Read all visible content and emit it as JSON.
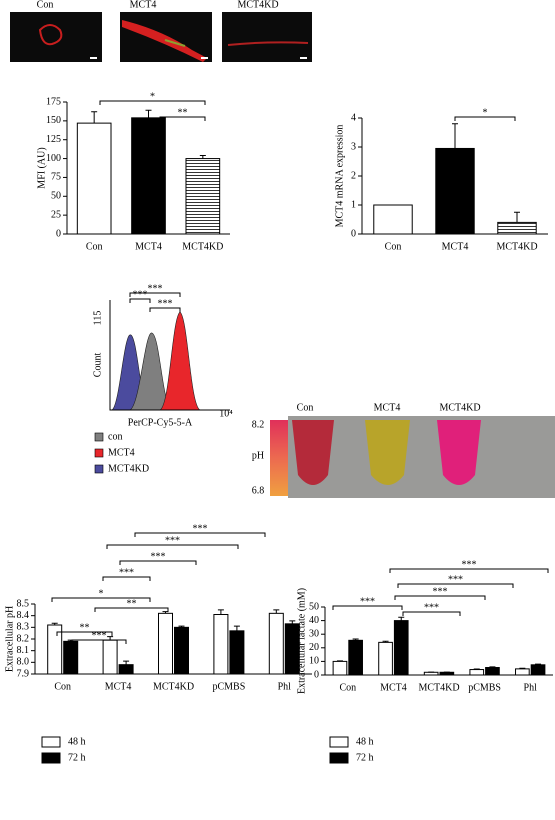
{
  "images": {
    "labels": [
      "Con",
      "MCT4",
      "MCT4KD"
    ]
  },
  "flow": {
    "ylabel": "Count",
    "ymax_label": "115",
    "xlabel": "PerCP-Cy5-5-A",
    "xmax_label": "10⁴",
    "legend": [
      {
        "name": "con",
        "color": "#7f7f7f"
      },
      {
        "name": "MCT4",
        "color": "#e8262b"
      },
      {
        "name": "MCT4KD",
        "color": "#4b4b9e"
      }
    ],
    "significance": [
      "***",
      "***",
      "***"
    ]
  },
  "tubes": {
    "labels": [
      "Con",
      "MCT4",
      "MCT4KD"
    ],
    "scale_top": "8.2",
    "scale_label": "pH",
    "scale_bottom": "6.8"
  },
  "chart_data": [
    {
      "type": "bar",
      "ylabel": "MFI (AU)",
      "categories": [
        "Con",
        "MCT4",
        "MCT4KD"
      ],
      "values": [
        147,
        154,
        100
      ],
      "errors": [
        15,
        10,
        4
      ],
      "colors": [
        "#ffffff",
        "#000000",
        "#ffffff"
      ],
      "hatched": [
        false,
        false,
        true
      ],
      "ylim": [
        0,
        175
      ],
      "yticks": [
        0,
        25,
        50,
        75,
        100,
        125,
        150,
        175
      ],
      "significance": [
        "*",
        "**"
      ]
    },
    {
      "type": "bar",
      "ylabel": "MCT4 mRNA expression",
      "categories": [
        "Con",
        "MCT4",
        "MCT4KD"
      ],
      "values": [
        1,
        2.95,
        0.4
      ],
      "errors": [
        null,
        0.85,
        0.35
      ],
      "colors": [
        "#ffffff",
        "#000000",
        "#ffffff"
      ],
      "hatched": [
        false,
        false,
        true
      ],
      "ylim": [
        0,
        4
      ],
      "yticks": [
        0,
        1,
        2,
        3,
        4
      ],
      "significance": [
        "*"
      ]
    },
    {
      "type": "grouped-bar",
      "ylabel": "Extracellular pH",
      "categories": [
        "Con",
        "MCT4",
        "MCT4KD",
        "pCMBS",
        "Phl"
      ],
      "series": [
        {
          "name": "48 h",
          "color": "#ffffff",
          "values": [
            8.32,
            8.19,
            8.42,
            8.41,
            8.42
          ],
          "errors": [
            0.015,
            0.03,
            0.015,
            0.04,
            0.03
          ]
        },
        {
          "name": "72 h",
          "color": "#000000",
          "values": [
            8.18,
            7.98,
            8.3,
            8.27,
            8.33
          ],
          "errors": [
            0.01,
            0.03,
            0.01,
            0.04,
            0.025
          ]
        }
      ],
      "ylim": [
        7.9,
        8.5
      ],
      "yticks": [
        7.9,
        {
          "value": 8,
          "label": "8.0"
        },
        8.1,
        8.2,
        8.3,
        8.4,
        8.5
      ],
      "significance": [
        "***",
        "***",
        "***",
        "***",
        "*",
        "**",
        "**",
        "***"
      ]
    },
    {
      "type": "grouped-bar",
      "ylabel": "Extracellular lactate (mM)",
      "categories": [
        "Con",
        "MCT4",
        "MCT4KD",
        "pCMBS",
        "Phl"
      ],
      "series": [
        {
          "name": "48 h",
          "color": "#ffffff",
          "values": [
            10,
            24,
            2,
            4,
            4.5
          ],
          "errors": [
            0.4,
            0.8,
            0.1,
            0.4,
            0.5
          ]
        },
        {
          "name": "72 h",
          "color": "#000000",
          "values": [
            25.5,
            40,
            2,
            5.5,
            7.5
          ],
          "errors": [
            1,
            2.5,
            0.1,
            0.5,
            0.5
          ]
        }
      ],
      "ylim": [
        0,
        50
      ],
      "yticks": [
        0,
        10,
        20,
        30,
        40,
        50
      ],
      "significance": [
        "***",
        "***",
        "***",
        "***",
        "***"
      ]
    }
  ]
}
